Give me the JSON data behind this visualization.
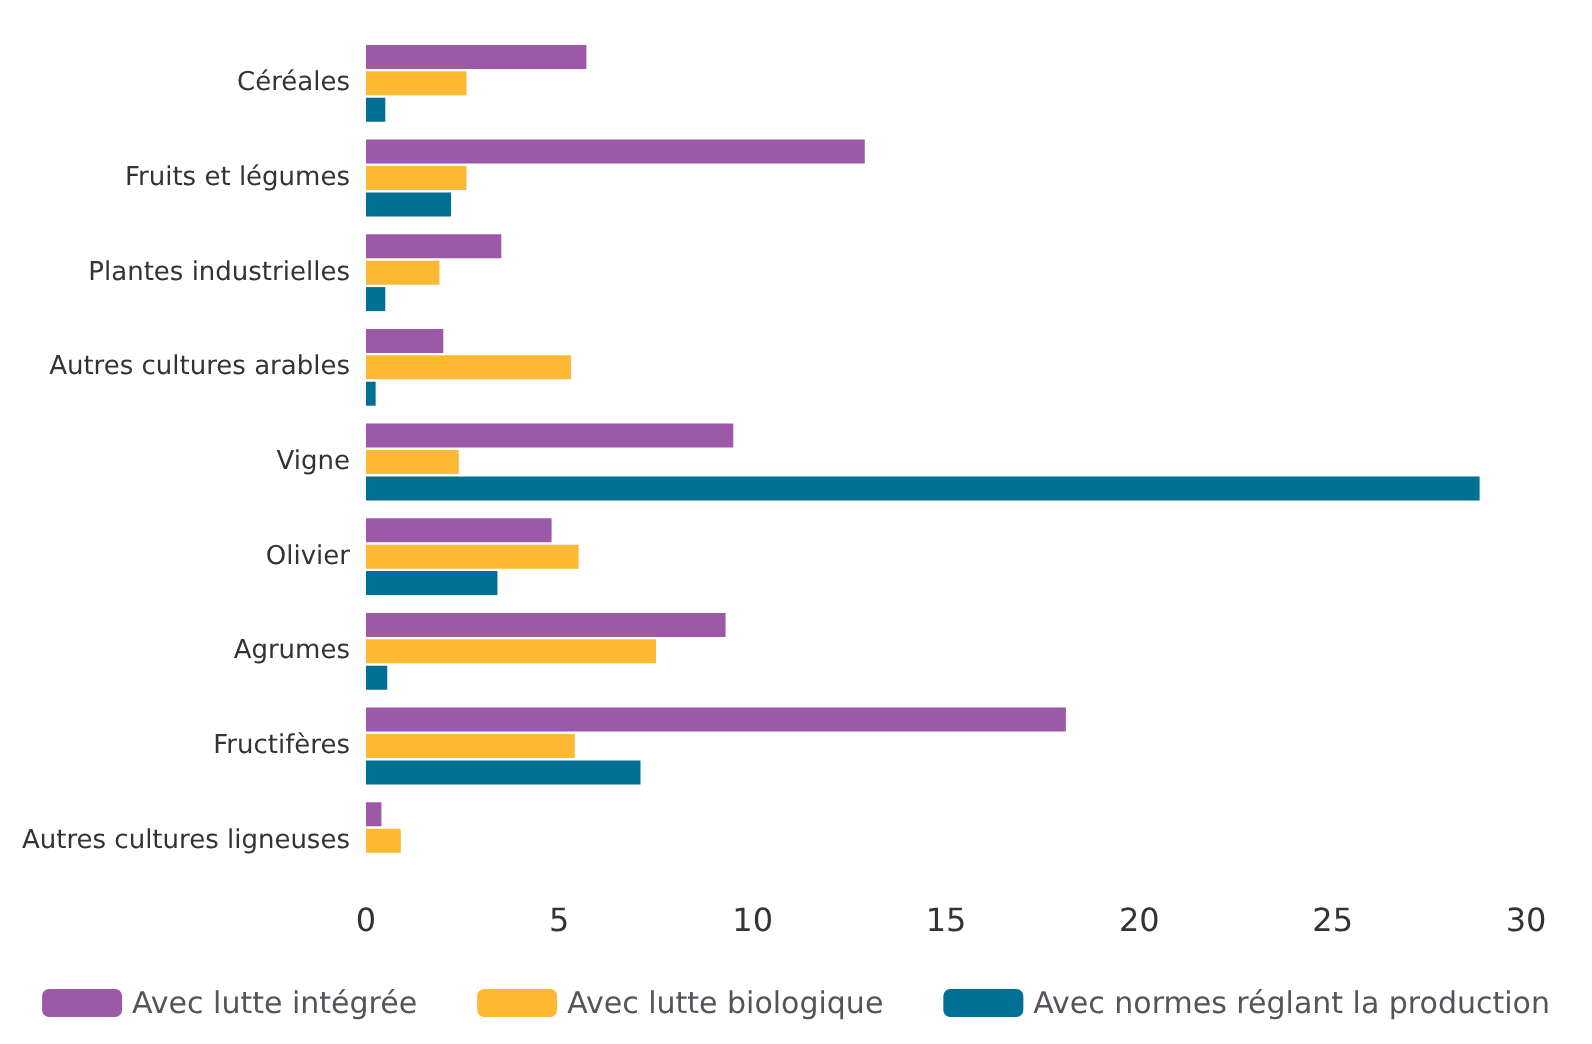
{
  "chart_data": {
    "type": "bar",
    "orientation": "horizontal",
    "categories": [
      "Céréales",
      "Fruits et légumes",
      "Plantes industrielles",
      "Autres cultures arables",
      "Vigne",
      "Olivier",
      "Agrumes",
      "Fructifères",
      "Autres cultures ligneuses"
    ],
    "series": [
      {
        "name": "Avec lutte intégrée",
        "color": "#9b59a8",
        "values": [
          5.7,
          12.9,
          3.5,
          2.0,
          9.5,
          4.8,
          9.3,
          18.1,
          0.4
        ]
      },
      {
        "name": "Avec lutte biologique",
        "color": "#fdb933",
        "values": [
          2.6,
          2.6,
          1.9,
          5.3,
          2.4,
          5.5,
          7.5,
          5.4,
          0.9
        ]
      },
      {
        "name": "Avec normes réglant la production",
        "color": "#006f94",
        "values": [
          0.5,
          2.2,
          0.5,
          0.25,
          28.8,
          3.4,
          0.55,
          7.1,
          null
        ]
      }
    ],
    "xlim": [
      0,
      30
    ],
    "xticks": [
      0,
      5,
      10,
      15,
      20,
      25,
      30
    ],
    "grid": false,
    "legend": "bottom"
  }
}
